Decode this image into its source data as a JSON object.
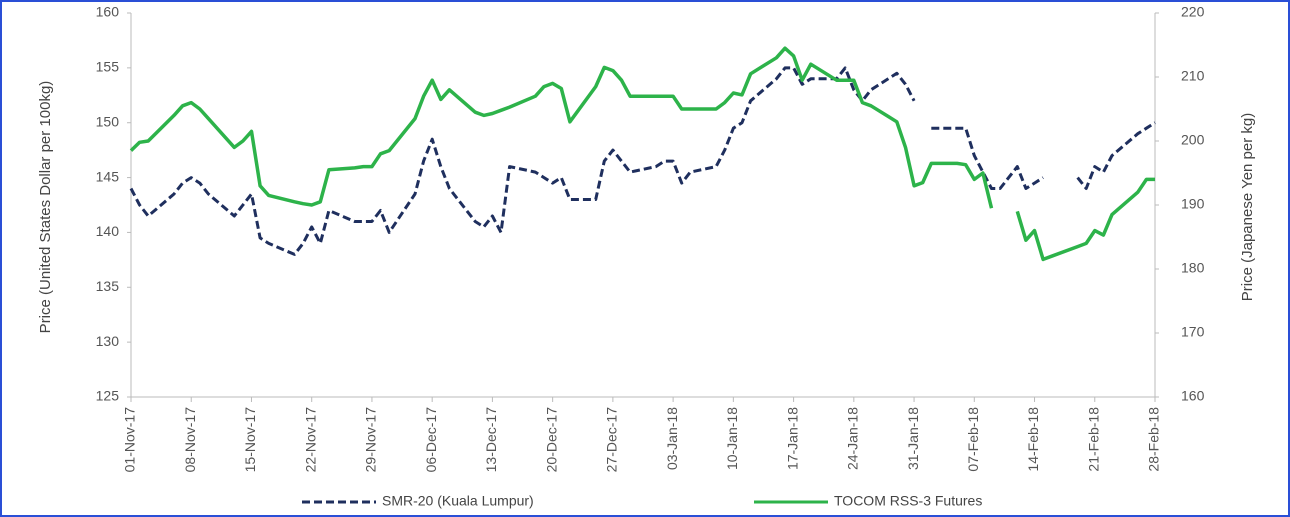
{
  "chart_data": {
    "type": "line",
    "y_label": "Price (United States Dollar per 100kg)",
    "y2_label": "Price (Japanese Yen per kg)",
    "x": [
      0,
      1,
      2,
      5,
      6,
      7,
      8,
      9,
      12,
      13,
      14,
      15,
      16,
      19,
      20,
      21,
      22,
      23,
      26,
      27,
      28,
      29,
      30,
      33,
      34,
      35,
      36,
      37,
      40,
      41,
      42,
      43,
      44,
      47,
      48,
      49,
      50,
      51,
      54,
      55,
      56,
      57,
      58,
      61,
      62,
      63,
      64,
      65,
      68,
      69,
      70,
      71,
      72,
      75,
      76,
      77,
      78,
      79,
      82,
      83,
      84,
      85,
      86,
      89,
      90,
      91,
      92,
      93,
      96,
      97,
      98,
      99,
      100,
      101,
      103,
      104,
      105,
      106,
      107,
      110,
      111,
      112,
      113,
      114,
      117,
      118,
      119
    ],
    "xlim": [
      0,
      119
    ],
    "xticks": [
      {
        "value": 0,
        "label": "01-Nov-17"
      },
      {
        "value": 7,
        "label": "08-Nov-17"
      },
      {
        "value": 14,
        "label": "15-Nov-17"
      },
      {
        "value": 21,
        "label": "22-Nov-17"
      },
      {
        "value": 28,
        "label": "29-Nov-17"
      },
      {
        "value": 35,
        "label": "06-Dec-17"
      },
      {
        "value": 42,
        "label": "13-Dec-17"
      },
      {
        "value": 49,
        "label": "20-Dec-17"
      },
      {
        "value": 56,
        "label": "27-Dec-17"
      },
      {
        "value": 63,
        "label": "03-Jan-18"
      },
      {
        "value": 70,
        "label": "10-Jan-18"
      },
      {
        "value": 77,
        "label": "17-Jan-18"
      },
      {
        "value": 84,
        "label": "24-Jan-18"
      },
      {
        "value": 91,
        "label": "31-Jan-18"
      },
      {
        "value": 98,
        "label": "07-Feb-18"
      },
      {
        "value": 105,
        "label": "14-Feb-18"
      },
      {
        "value": 112,
        "label": "21-Feb-18"
      },
      {
        "value": 119,
        "label": "28-Feb-18"
      }
    ],
    "ylim": [
      125,
      160
    ],
    "yticks": [
      125,
      130,
      135,
      140,
      145,
      150,
      155,
      160
    ],
    "y2lim": [
      160,
      220
    ],
    "y2ticks": [
      160,
      170,
      180,
      190,
      200,
      210,
      220
    ],
    "grid": false,
    "legend": "bottom",
    "series": [
      {
        "name": "SMR-20 (Kuala Lumpur)",
        "color": "#1f2f5e",
        "dashed": true,
        "values": [
          144,
          142.5,
          141.5,
          143.5,
          144.5,
          145,
          144.5,
          143.5,
          141.5,
          142.5,
          143.5,
          139.5,
          139,
          138,
          139,
          140.5,
          139,
          142,
          141,
          141,
          141,
          142,
          140,
          143.5,
          146.5,
          148.5,
          146,
          144,
          141,
          140.5,
          141.5,
          140,
          146,
          145.5,
          145,
          144.5,
          145,
          143,
          143,
          146.5,
          147.5,
          146.5,
          145.5,
          146,
          146.5,
          146.5,
          144.5,
          145.5,
          146,
          147.5,
          149.5,
          150,
          152,
          154,
          155,
          155,
          153.5,
          154,
          154,
          155,
          153,
          152,
          153,
          154.5,
          153.5,
          152,
          null,
          149.5,
          149.5,
          149.5,
          147,
          145.5,
          144,
          144,
          146,
          144,
          144.5,
          145,
          null,
          145,
          144,
          146,
          145.5,
          147,
          149,
          149.5,
          150
        ]
      },
      {
        "name": "TOCOM RSS-3 Futures",
        "color": "#2db34a",
        "axis": "y2",
        "values": [
          198.5,
          199.8,
          200,
          204,
          205.5,
          206,
          205,
          203.5,
          199,
          200,
          201.5,
          193,
          191.5,
          190.5,
          190.2,
          190,
          190.5,
          195.5,
          195.8,
          196,
          196,
          198,
          198.5,
          203.5,
          207,
          209.5,
          206.5,
          208,
          204.5,
          204,
          204.3,
          204.8,
          205.3,
          207,
          208.5,
          209,
          208.2,
          203,
          208.5,
          211.5,
          211,
          209.5,
          207,
          207,
          207,
          207,
          205,
          205,
          205,
          206,
          207.5,
          207.2,
          210.5,
          213,
          214.5,
          213.3,
          209.5,
          212,
          209.5,
          209.5,
          209.5,
          206,
          205.5,
          203,
          199,
          193,
          193.5,
          196.5,
          196.5,
          196.3,
          194,
          195,
          189.5,
          null,
          189,
          184.5,
          186,
          181.5,
          182,
          183.5,
          184,
          186,
          185.3,
          188.5,
          192,
          194,
          194
        ]
      }
    ]
  }
}
